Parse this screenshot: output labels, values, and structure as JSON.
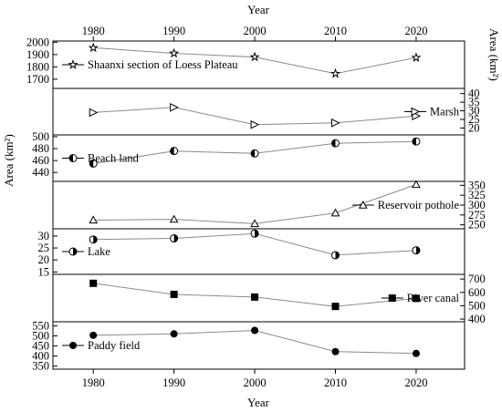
{
  "chart_data": {
    "type": "line",
    "x": [
      1980,
      1990,
      2000,
      2010,
      2020
    ],
    "x_tick_labels": [
      "1980",
      "1990",
      "2000",
      "2010",
      "2020"
    ],
    "xlim": [
      1975,
      2026
    ],
    "xlabel_top": "Year",
    "xlabel_bottom": "Year",
    "ylabel_left": "Area (km²)",
    "ylabel_right": "Area (km²)",
    "grid": false,
    "series": [
      {
        "name": "Shaanxi section of Loess Plateau",
        "values": [
          1955,
          1910,
          1880,
          1745,
          1875
        ],
        "marker": "star",
        "axis_side": "left",
        "ylim": [
          1625,
          2010
        ],
        "ticks": [
          1700,
          1800,
          1900,
          2000
        ],
        "legend_position": "left"
      },
      {
        "name": "Marsh",
        "values": [
          29,
          32,
          22,
          23,
          27
        ],
        "marker": "triangle-right",
        "axis_side": "right",
        "ylim": [
          16,
          43
        ],
        "ticks": [
          20,
          25,
          30,
          35,
          40
        ],
        "legend_position": "right"
      },
      {
        "name": "Beach land",
        "values": [
          455,
          476,
          472,
          489,
          492
        ],
        "marker": "circle-left-half",
        "axis_side": "left",
        "ylim": [
          425,
          503
        ],
        "ticks": [
          440,
          460,
          480,
          500
        ],
        "legend_position": "left"
      },
      {
        "name": "Reservoir pothole",
        "values": [
          262,
          264,
          253,
          280,
          352
        ],
        "marker": "triangle",
        "axis_side": "right",
        "ylim": [
          240,
          360
        ],
        "ticks": [
          250,
          275,
          300,
          325,
          350
        ],
        "legend_position": "right"
      },
      {
        "name": "Lake",
        "values": [
          28.5,
          29,
          31,
          22,
          24
        ],
        "marker": "circle-right-half",
        "axis_side": "left",
        "ylim": [
          14,
          33
        ],
        "ticks": [
          15,
          20,
          25,
          30
        ],
        "legend_position": "left"
      },
      {
        "name": "River canal",
        "values": [
          668,
          585,
          565,
          495,
          555
        ],
        "marker": "square",
        "axis_side": "right",
        "ylim": [
          380,
          735
        ],
        "ticks": [
          400,
          500,
          600,
          700
        ],
        "legend_position": "right"
      },
      {
        "name": "Paddy field",
        "values": [
          503,
          510,
          527,
          422,
          413
        ],
        "marker": "circle",
        "axis_side": "left",
        "ylim": [
          335,
          570
        ],
        "ticks": [
          350,
          400,
          450,
          500,
          550
        ],
        "legend_position": "left"
      }
    ]
  }
}
